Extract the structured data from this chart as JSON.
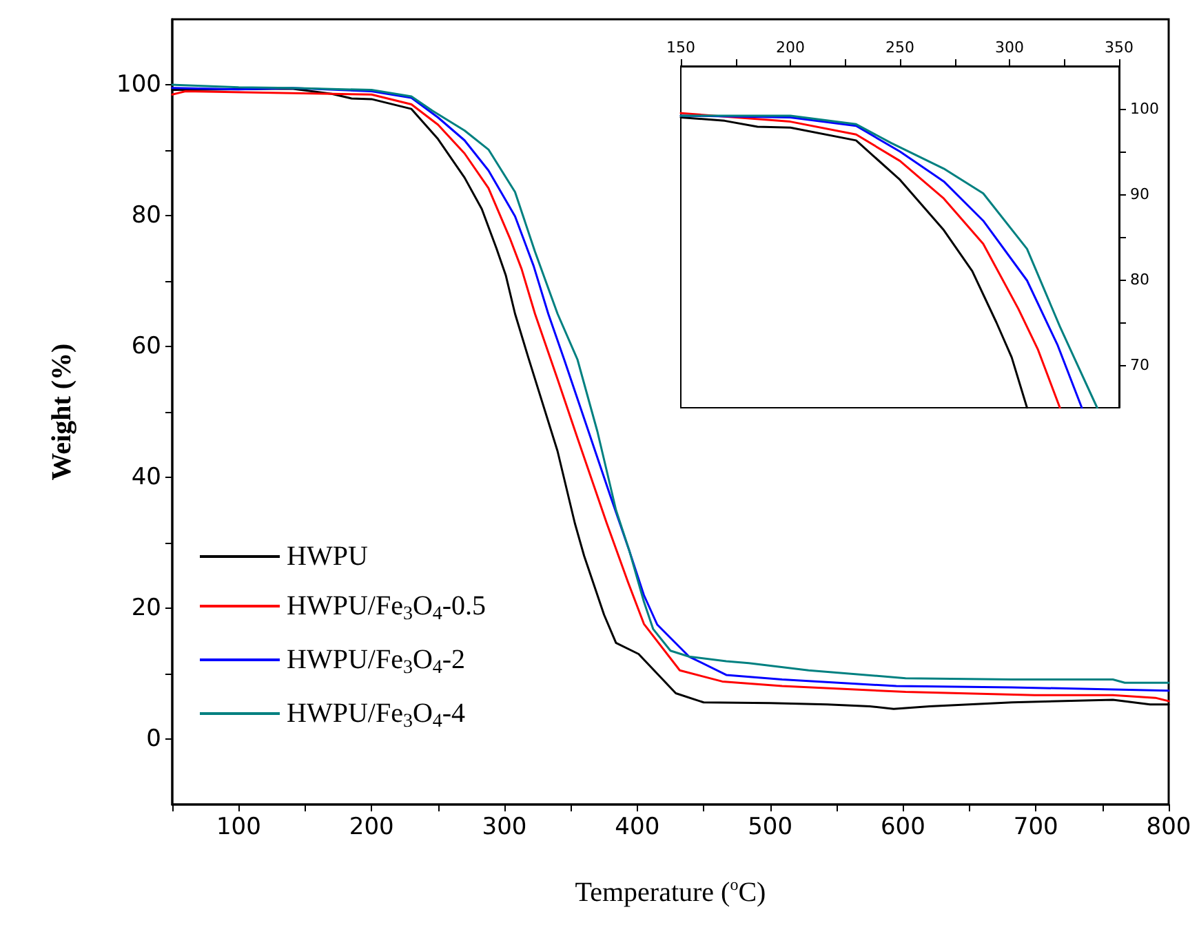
{
  "chart_data": [
    {
      "type": "line",
      "xlabel": "Temperature ($^{o}$C)",
      "ylabel": "Weight (%)",
      "xlim": [
        50,
        800
      ],
      "ylim": [
        -10,
        110
      ],
      "xticks": [
        {
          "value": 50,
          "label": null
        },
        100,
        {
          "value": 150,
          "label": null
        },
        200,
        {
          "value": 250,
          "label": null
        },
        300,
        {
          "value": 350,
          "label": null
        },
        400,
        {
          "value": 450,
          "label": null
        },
        500,
        {
          "value": 550,
          "label": null
        },
        600,
        {
          "value": 650,
          "label": null
        },
        700,
        {
          "value": 750,
          "label": null
        },
        800
      ],
      "yticks": [
        0,
        {
          "value": 10,
          "label": null
        },
        20,
        {
          "value": 30,
          "label": null
        },
        40,
        {
          "value": 50,
          "label": null
        },
        60,
        {
          "value": 70,
          "label": null
        },
        80,
        {
          "value": 90,
          "label": null
        },
        100
      ],
      "legend": "bottom left",
      "marker": "none",
      "line_style": "solid",
      "series": [
        {
          "name": "HWPU",
          "color": "#000000",
          "x": [
            50,
            140,
            170,
            185,
            200,
            230,
            250,
            270,
            283,
            294,
            301,
            308,
            318,
            340,
            353,
            360,
            375,
            384,
            401,
            415,
            429,
            450,
            500,
            543,
            575,
            593,
            620,
            682,
            758,
            786,
            800
          ],
          "values": [
            99.2,
            99.4,
            98.6,
            97.9,
            97.8,
            96.3,
            91.7,
            85.8,
            81,
            75,
            70.9,
            65,
            58.3,
            44,
            33,
            28,
            19,
            14.7,
            13,
            10,
            7,
            5.6,
            5.5,
            5.3,
            5,
            4.6,
            5,
            5.6,
            6,
            5.3,
            5.3
          ]
        },
        {
          "name": "HWPU/Fe$_{3}$O$_{4}$-0.5",
          "color": "#ff0000",
          "x": [
            50,
            60,
            200,
            230,
            250,
            270,
            288,
            304,
            313,
            323,
            340,
            355,
            377,
            393,
            405,
            432,
            464,
            509,
            602,
            699,
            758,
            790,
            800
          ],
          "values": [
            98.5,
            99,
            98.5,
            97,
            93.9,
            89.5,
            84.2,
            76.6,
            71.8,
            65,
            55,
            46,
            33,
            24,
            17.6,
            10.5,
            8.8,
            8.1,
            7.2,
            6.7,
            6.7,
            6.3,
            5.8
          ]
        },
        {
          "name": "HWPU/Fe$_{3}$O$_{4}$-2",
          "color": "#0000ff",
          "x": [
            50,
            100,
            140,
            200,
            230,
            250,
            270,
            288,
            308,
            322,
            333,
            345,
            360,
            380,
            394,
            405,
            415,
            439,
            467,
            509,
            595,
            682,
            800
          ],
          "values": [
            99.5,
            99.3,
            99.5,
            99,
            98,
            95,
            91.5,
            86.9,
            79.9,
            72.3,
            65,
            58,
            49,
            37,
            28.8,
            22,
            17.5,
            12.6,
            9.8,
            9.1,
            8.1,
            7.9,
            7.4
          ]
        },
        {
          "name": "HWPU/Fe$_{3}$O$_{4}$-4",
          "color": "#008080",
          "x": [
            50,
            100,
            140,
            200,
            230,
            246,
            270,
            288,
            308,
            323,
            340,
            355,
            370,
            384,
            394,
            405,
            412,
            425,
            439,
            467,
            484,
            529,
            602,
            682,
            758,
            767,
            800
          ],
          "values": [
            100,
            99.6,
            99.5,
            99.2,
            98.2,
            96,
            93,
            90.1,
            83.6,
            74.5,
            65,
            58,
            47,
            35,
            28.8,
            21,
            16.8,
            13.5,
            12.6,
            11.9,
            11.6,
            10.5,
            9.3,
            9.1,
            9.1,
            8.6,
            8.6
          ]
        }
      ]
    },
    {
      "type": "line",
      "xlim": [
        150,
        350
      ],
      "ylim": [
        65,
        105
      ],
      "xticks": [
        150,
        {
          "value": 175,
          "label": null
        },
        200,
        {
          "value": 225,
          "label": null
        },
        250,
        {
          "value": 275,
          "label": null
        },
        300,
        {
          "value": 325,
          "label": null
        },
        350
      ],
      "yticks": [
        70,
        {
          "value": 75,
          "label": null
        },
        80,
        {
          "value": 85,
          "label": null
        },
        90,
        {
          "value": 95,
          "label": null
        },
        100
      ],
      "marker": "none",
      "line_style": "solid",
      "series": [
        {
          "color": "#000000",
          "x": [
            150,
            170,
            185,
            200,
            230,
            250,
            270,
            283,
            294,
            301,
            308
          ],
          "values": [
            99,
            98.6,
            97.9,
            97.8,
            96.3,
            91.7,
            85.8,
            81,
            75,
            70.9,
            65
          ]
        },
        {
          "color": "#ff0000",
          "x": [
            150,
            200,
            230,
            250,
            270,
            288,
            304,
            313,
            323
          ],
          "values": [
            99.5,
            98.5,
            97,
            93.9,
            89.5,
            84.2,
            76.6,
            71.8,
            65
          ]
        },
        {
          "color": "#0000ff",
          "x": [
            150,
            200,
            230,
            250,
            270,
            288,
            308,
            322,
            333
          ],
          "values": [
            99.2,
            99,
            98,
            95,
            91.5,
            86.9,
            79.9,
            72.3,
            65
          ]
        },
        {
          "color": "#008080",
          "x": [
            150,
            200,
            230,
            246,
            270,
            288,
            308,
            323,
            340
          ],
          "values": [
            99.2,
            99.2,
            98.2,
            96,
            93,
            90.1,
            83.6,
            74.5,
            65
          ]
        }
      ]
    }
  ]
}
